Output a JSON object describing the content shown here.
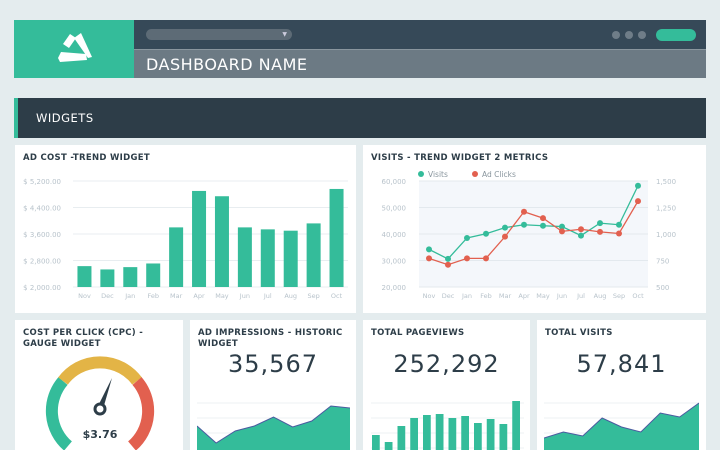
{
  "header": {
    "dashboard_name": "DASHBOARD NAME",
    "logo": "triangle-logo"
  },
  "section": {
    "title": "WIDGETS"
  },
  "colors": {
    "accent": "#34bc9a",
    "red": "#e2604f",
    "yellow": "#e3b446"
  },
  "widgets": {
    "ad_cost": {
      "title": "AD COST -TREND WIDGET"
    },
    "visits_trend": {
      "title": "VISITS - TREND WIDGET 2 METRICS"
    },
    "cpc": {
      "title": "COST PER CLICK (CPC) - GAUGE WIDGET",
      "value": "$3.76"
    },
    "impressions": {
      "title": "AD IMPRESSIONS - HISTORIC WIDGET",
      "value": "35,567",
      "sparkline": [
        24,
        7,
        19,
        24,
        33,
        23,
        29,
        44,
        42
      ]
    },
    "pageviews": {
      "title": "TOTAL PAGEVIEWS",
      "value": "252,292",
      "sparkbars": [
        15,
        8,
        24,
        32,
        35,
        36,
        32,
        34,
        27,
        31,
        26,
        49
      ]
    },
    "total_visits": {
      "title": "TOTAL VISITS",
      "value": "57,841",
      "sparkline": [
        12,
        18,
        14,
        32,
        23,
        18,
        37,
        33,
        47
      ]
    }
  },
  "chart_data": [
    {
      "type": "bar",
      "title": "AD COST -TREND WIDGET",
      "categories": [
        "Nov",
        "Dec",
        "Jan",
        "Feb",
        "Mar",
        "Apr",
        "May",
        "Jun",
        "Jul",
        "Aug",
        "Sep",
        "Oct"
      ],
      "values": [
        2630,
        2530,
        2600,
        2710,
        3800,
        4900,
        4740,
        3800,
        3740,
        3700,
        3920,
        4960
      ],
      "ylim": [
        2000,
        5200
      ],
      "yticks": [
        "$ 2,000.00",
        "$ 2,800.00",
        "$ 3,600.00",
        "$ 4,400.00",
        "$ 5,200.00"
      ],
      "grid": true
    },
    {
      "type": "line",
      "title": "VISITS - TREND WIDGET 2 METRICS",
      "categories": [
        "Nov",
        "Dec",
        "Jan",
        "Feb",
        "Mar",
        "Apr",
        "May",
        "Jun",
        "Jul",
        "Aug",
        "Sep",
        "Oct"
      ],
      "series": [
        {
          "name": "Visits",
          "axis": "left",
          "color": "#34bc9a",
          "values": [
            34200,
            30600,
            38500,
            40100,
            42400,
            43500,
            43100,
            42800,
            39400,
            44100,
            43500,
            58200
          ]
        },
        {
          "name": "Ad Clicks",
          "axis": "right",
          "color": "#e2604f",
          "values": [
            770,
            710,
            770,
            770,
            975,
            1210,
            1150,
            1025,
            1045,
            1020,
            1005,
            1310
          ]
        }
      ],
      "ylim": [
        20000,
        60000
      ],
      "yticks": [
        "20,000",
        "30,000",
        "40,000",
        "50,000",
        "60,000"
      ],
      "y2lim": [
        500,
        1500
      ],
      "y2ticks": [
        "500",
        "750",
        "1,000",
        "1,250",
        "1,500"
      ],
      "legend": "top-left",
      "grid": true
    },
    {
      "type": "gauge",
      "title": "COST PER CLICK (CPC) - GAUGE WIDGET",
      "value": "$3.76"
    }
  ]
}
